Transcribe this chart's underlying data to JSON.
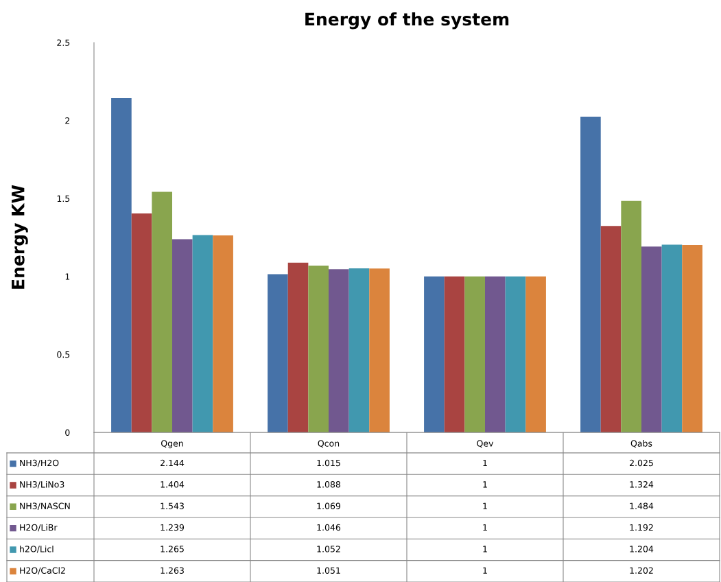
{
  "chart_data": {
    "type": "bar",
    "title": "Energy of the system",
    "ylabel": "Energy KW",
    "categories": [
      "Qgen",
      "Qcon",
      "Qev",
      "Qabs"
    ],
    "series": [
      {
        "name": "NH3/H2O",
        "color": "#4672a8",
        "values": [
          2.144,
          1.015,
          1,
          2.025
        ]
      },
      {
        "name": "NH3/LiNo3",
        "color": "#a94441",
        "values": [
          1.404,
          1.088,
          1,
          1.324
        ]
      },
      {
        "name": "NH3/NASCN",
        "color": "#89a54e",
        "values": [
          1.543,
          1.069,
          1,
          1.484
        ]
      },
      {
        "name": "H2O/LiBr",
        "color": "#71588f",
        "values": [
          1.239,
          1.046,
          1,
          1.192
        ]
      },
      {
        "name": "h2O/Licl",
        "color": "#4198af",
        "values": [
          1.265,
          1.052,
          1,
          1.204
        ]
      },
      {
        "name": "H2O/CaCl2",
        "color": "#db843d",
        "values": [
          1.263,
          1.051,
          1,
          1.202
        ]
      }
    ],
    "ylim": [
      0,
      2.5
    ],
    "yticks": [
      0,
      0.5,
      1,
      1.5,
      2,
      2.5
    ],
    "grid": false,
    "legend": "bottom",
    "data_labels": true
  }
}
